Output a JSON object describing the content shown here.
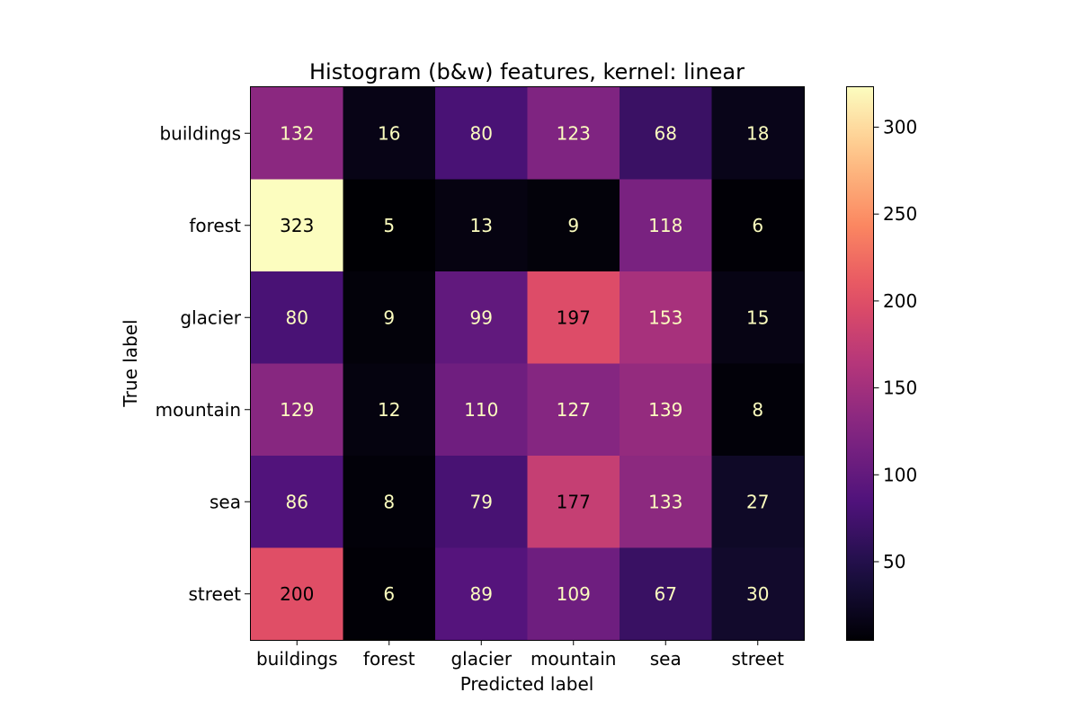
{
  "chart_data": {
    "type": "heatmap",
    "title": "Histogram (b&w) features, kernel: linear",
    "xlabel": "Predicted label",
    "ylabel": "True label",
    "x_categories": [
      "buildings",
      "forest",
      "glacier",
      "mountain",
      "sea",
      "street"
    ],
    "y_categories": [
      "buildings",
      "forest",
      "glacier",
      "mountain",
      "sea",
      "street"
    ],
    "values": [
      [
        132,
        16,
        80,
        123,
        68,
        18
      ],
      [
        323,
        5,
        13,
        9,
        118,
        6
      ],
      [
        80,
        9,
        99,
        197,
        153,
        15
      ],
      [
        129,
        12,
        110,
        127,
        139,
        8
      ],
      [
        86,
        8,
        79,
        177,
        133,
        27
      ],
      [
        200,
        6,
        89,
        109,
        67,
        30
      ]
    ],
    "colormap": "magma",
    "vmin": 5,
    "vmax": 323,
    "colorbar_ticks": [
      50,
      100,
      150,
      200,
      250,
      300
    ]
  }
}
